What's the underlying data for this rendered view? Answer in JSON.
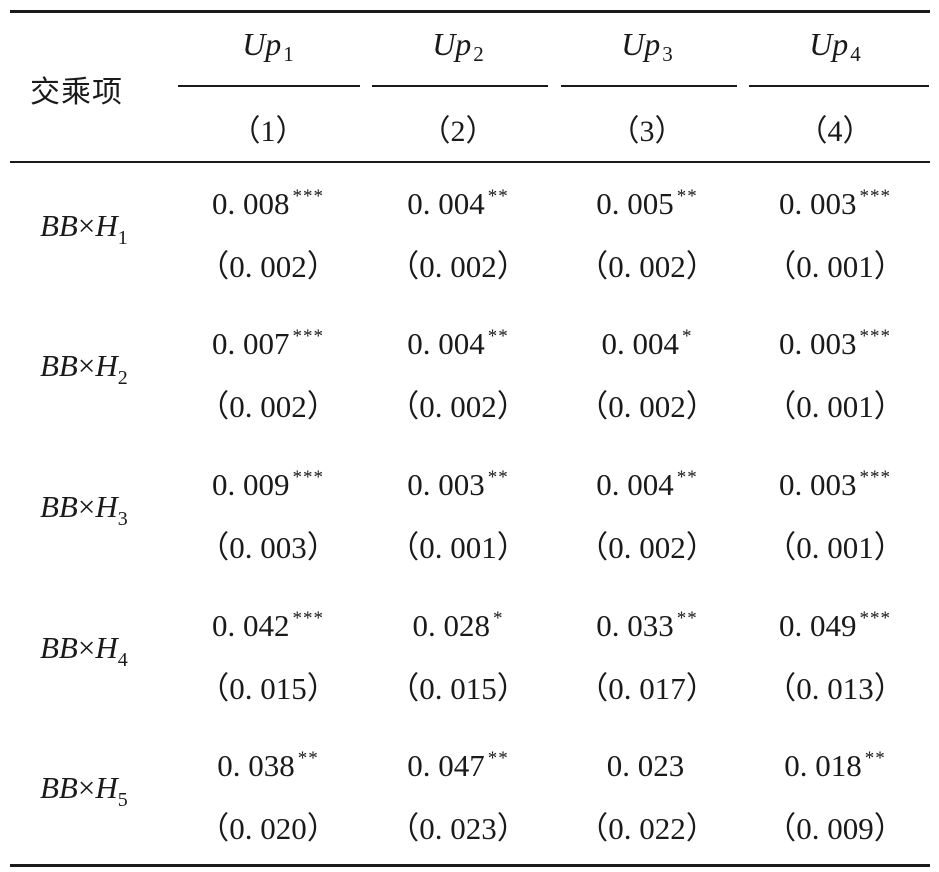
{
  "header": {
    "corner_label": "交乘项",
    "columns": [
      {
        "var": "Up",
        "sub": "1",
        "num": "（1）"
      },
      {
        "var": "Up",
        "sub": "2",
        "num": "（2）"
      },
      {
        "var": "Up",
        "sub": "3",
        "num": "（3）"
      },
      {
        "var": "Up",
        "sub": "4",
        "num": "（4）"
      }
    ]
  },
  "rows": [
    {
      "label": {
        "pre": "BB",
        "times": "×",
        "var": "H",
        "sub": "1"
      },
      "cells": [
        {
          "coef": "0. 008",
          "stars": "***",
          "se": "（0. 002）"
        },
        {
          "coef": "0. 004",
          "stars": "**",
          "se": "（0. 002）"
        },
        {
          "coef": "0. 005",
          "stars": "**",
          "se": "（0. 002）"
        },
        {
          "coef": "0. 003",
          "stars": "***",
          "se": "（0. 001）"
        }
      ]
    },
    {
      "label": {
        "pre": "BB",
        "times": "×",
        "var": "H",
        "sub": "2"
      },
      "cells": [
        {
          "coef": "0. 007",
          "stars": "***",
          "se": "（0. 002）"
        },
        {
          "coef": "0. 004",
          "stars": "**",
          "se": "（0. 002）"
        },
        {
          "coef": "0. 004",
          "stars": "*",
          "se": "（0. 002）"
        },
        {
          "coef": "0. 003",
          "stars": "***",
          "se": "（0. 001）"
        }
      ]
    },
    {
      "label": {
        "pre": "BB",
        "times": "×",
        "var": "H",
        "sub": "3"
      },
      "cells": [
        {
          "coef": "0. 009",
          "stars": "***",
          "se": "（0. 003）"
        },
        {
          "coef": "0. 003",
          "stars": "**",
          "se": "（0. 001）"
        },
        {
          "coef": "0. 004",
          "stars": "**",
          "se": "（0. 002）"
        },
        {
          "coef": "0. 003",
          "stars": "***",
          "se": "（0. 001）"
        }
      ]
    },
    {
      "label": {
        "pre": "BB",
        "times": "×",
        "var": "H",
        "sub": "4"
      },
      "cells": [
        {
          "coef": "0. 042",
          "stars": "***",
          "se": "（0. 015）"
        },
        {
          "coef": "0. 028",
          "stars": "*",
          "se": "（0. 015）"
        },
        {
          "coef": "0. 033",
          "stars": "**",
          "se": "（0. 017）"
        },
        {
          "coef": "0. 049",
          "stars": "***",
          "se": "（0. 013）"
        }
      ]
    },
    {
      "label": {
        "pre": "BB",
        "times": "×",
        "var": "H",
        "sub": "5"
      },
      "cells": [
        {
          "coef": "0. 038",
          "stars": "**",
          "se": "（0. 020）"
        },
        {
          "coef": "0. 047",
          "stars": "**",
          "se": "（0. 023）"
        },
        {
          "coef": "0. 023",
          "stars": "",
          "se": "（0. 022）"
        },
        {
          "coef": "0. 018",
          "stars": "**",
          "se": "（0. 009）"
        }
      ]
    }
  ]
}
